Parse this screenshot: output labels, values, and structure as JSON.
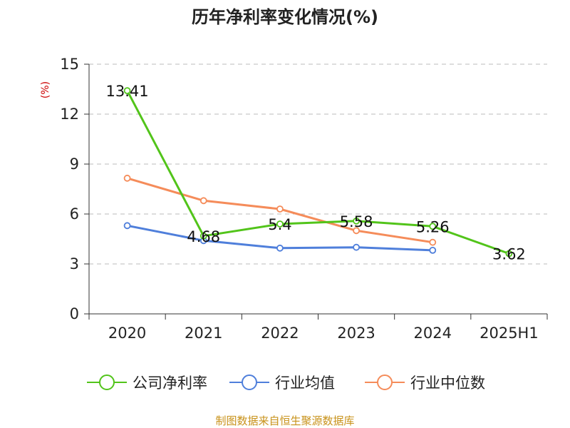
{
  "chart_data": {
    "type": "line",
    "title": "历年净利率变化情况(%)",
    "ylabel": "(%)",
    "categories": [
      "2020",
      "2021",
      "2022",
      "2023",
      "2024",
      "2025H1"
    ],
    "ylim": [
      0,
      15
    ],
    "yticks": [
      0,
      3,
      6,
      9,
      12,
      15
    ],
    "grid": true,
    "legend_position": "bottom",
    "series": [
      {
        "name": "公司净利率",
        "color": "#52c41a",
        "values": [
          13.41,
          4.68,
          5.4,
          5.58,
          5.26,
          3.62
        ],
        "labels": [
          "13.41",
          "4.68",
          "5.4",
          "5.58",
          "5.26",
          "3.62"
        ]
      },
      {
        "name": "行业均值",
        "color": "#4f7fdb",
        "values": [
          5.3,
          4.4,
          3.95,
          4.0,
          3.82,
          null
        ]
      },
      {
        "name": "行业中位数",
        "color": "#f58c5a",
        "values": [
          8.15,
          6.8,
          6.3,
          5.0,
          4.3,
          null
        ]
      }
    ]
  },
  "source": "制图数据来自恒生聚源数据库"
}
